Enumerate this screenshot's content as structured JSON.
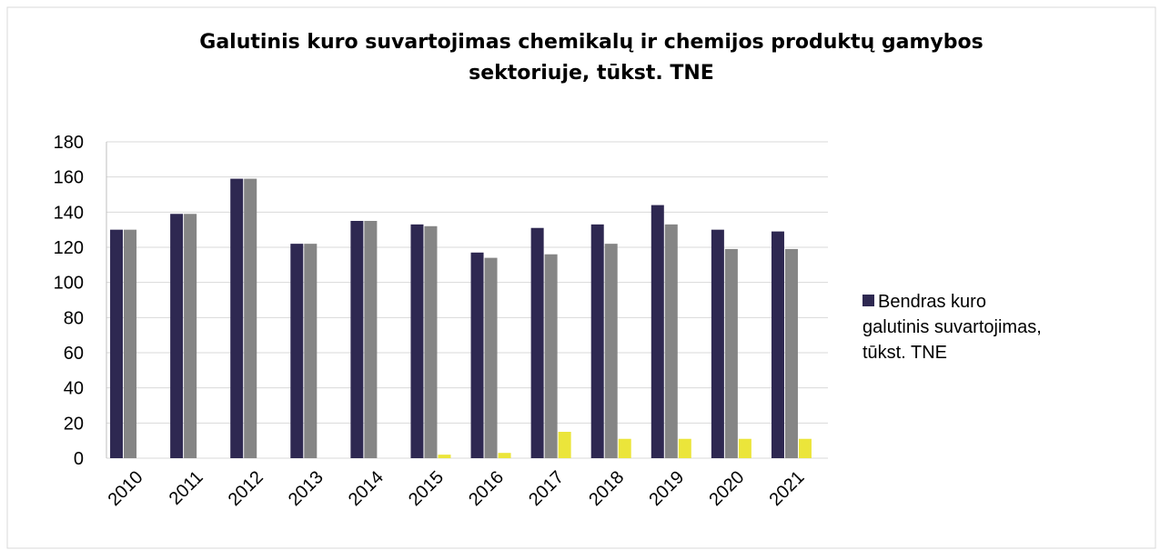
{
  "chart_data": {
    "type": "bar",
    "title": "Galutinis kuro suvartojimas chemikalų ir chemijos produktų gamybos sektoriuje, tūkst. TNE",
    "categories": [
      "2010",
      "2011",
      "2012",
      "2013",
      "2014",
      "2015",
      "2016",
      "2017",
      "2018",
      "2019",
      "2020",
      "2021"
    ],
    "series": [
      {
        "name": "Bendras kuro galutinis suvartojimas, tūkst. TNE",
        "color": "#2e2851",
        "values": [
          130,
          139,
          159,
          122,
          135,
          133,
          117,
          131,
          133,
          144,
          130,
          129
        ]
      },
      {
        "color": "#858585",
        "values": [
          130,
          139,
          159,
          122,
          135,
          132,
          114,
          116,
          122,
          133,
          119,
          119
        ]
      },
      {
        "color": "#ebe53a",
        "values": [
          0,
          0,
          0,
          0,
          0,
          2,
          3,
          15,
          11,
          11,
          11,
          11
        ]
      }
    ],
    "ylim": [
      0,
      180
    ],
    "yticks": [
      0,
      20,
      40,
      60,
      80,
      100,
      120,
      140,
      160,
      180
    ],
    "grid": true,
    "legend": "right"
  }
}
